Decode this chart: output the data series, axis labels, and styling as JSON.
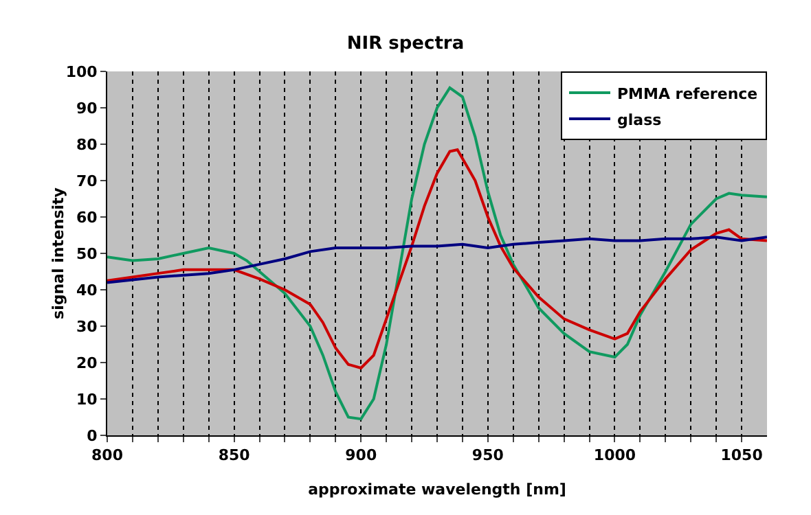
{
  "chart_data": {
    "type": "line",
    "title": "NIR spectra",
    "xlabel": "approximate wavelength [nm]",
    "ylabel": "signal intensity",
    "xlim": [
      800,
      1060
    ],
    "ylim": [
      0,
      100
    ],
    "xticks": [
      800,
      {
        "value": 810,
        "label": null
      },
      {
        "value": 820,
        "label": null
      },
      {
        "value": 830,
        "label": null
      },
      {
        "value": 840,
        "label": null
      },
      850,
      {
        "value": 860,
        "label": null
      },
      {
        "value": 870,
        "label": null
      },
      {
        "value": 880,
        "label": null
      },
      {
        "value": 890,
        "label": null
      },
      900,
      {
        "value": 910,
        "label": null
      },
      {
        "value": 920,
        "label": null
      },
      {
        "value": 930,
        "label": null
      },
      {
        "value": 940,
        "label": null
      },
      950,
      {
        "value": 960,
        "label": null
      },
      {
        "value": 970,
        "label": null
      },
      {
        "value": 980,
        "label": null
      },
      {
        "value": 990,
        "label": null
      },
      1000,
      {
        "value": 1010,
        "label": null
      },
      {
        "value": 1020,
        "label": null
      },
      {
        "value": 1030,
        "label": null
      },
      {
        "value": 1040,
        "label": null
      },
      1050
    ],
    "yticks": [
      0,
      10,
      20,
      30,
      40,
      50,
      60,
      70,
      80,
      90,
      100
    ],
    "grid": "x",
    "legend": "top right",
    "marker": "none",
    "line_style": "solid",
    "series": [
      {
        "name": "PMMA reference",
        "color": "#109a60",
        "x": [
          800,
          810,
          820,
          830,
          840,
          850,
          855,
          860,
          870,
          880,
          885,
          890,
          895,
          900,
          905,
          910,
          915,
          920,
          925,
          930,
          935,
          940,
          945,
          950,
          955,
          960,
          970,
          980,
          990,
          1000,
          1005,
          1010,
          1020,
          1030,
          1040,
          1045,
          1050,
          1060
        ],
        "values": [
          49,
          48,
          48.5,
          50,
          51.5,
          50,
          48,
          45,
          39,
          30,
          22,
          12,
          5,
          4.5,
          10,
          25,
          45,
          65,
          80,
          90,
          95.5,
          93,
          82,
          67,
          55,
          47,
          35,
          28,
          23,
          21.5,
          25,
          33,
          45,
          58,
          65,
          66.5,
          66,
          65.5
        ]
      },
      {
        "color": "#cc0000",
        "x": [
          800,
          810,
          820,
          830,
          840,
          850,
          860,
          870,
          880,
          885,
          890,
          895,
          900,
          905,
          910,
          920,
          925,
          930,
          935,
          938,
          945,
          950,
          955,
          960,
          970,
          980,
          990,
          1000,
          1005,
          1010,
          1020,
          1030,
          1040,
          1045,
          1050,
          1060
        ],
        "values": [
          42.5,
          43.5,
          44.5,
          45.5,
          45.5,
          45.5,
          43,
          40,
          36,
          31,
          24,
          19.5,
          18.5,
          22,
          32,
          52,
          63,
          72,
          78,
          78.5,
          70,
          60,
          52,
          46,
          38,
          32,
          29,
          26.5,
          28,
          34,
          43,
          51,
          55.5,
          56.5,
          54,
          53.5
        ]
      },
      {
        "name": "glass",
        "color": "#000080",
        "x": [
          800,
          820,
          840,
          850,
          860,
          870,
          880,
          890,
          900,
          910,
          920,
          930,
          940,
          950,
          960,
          970,
          980,
          990,
          1000,
          1010,
          1020,
          1030,
          1040,
          1050,
          1060
        ],
        "values": [
          42,
          43.5,
          44.5,
          45.5,
          47,
          48.5,
          50.5,
          51.5,
          51.5,
          51.5,
          52,
          52,
          52.5,
          51.5,
          52.5,
          53,
          53.5,
          54,
          53.5,
          53.5,
          54,
          54,
          54.5,
          53.5,
          54.5
        ]
      }
    ]
  }
}
